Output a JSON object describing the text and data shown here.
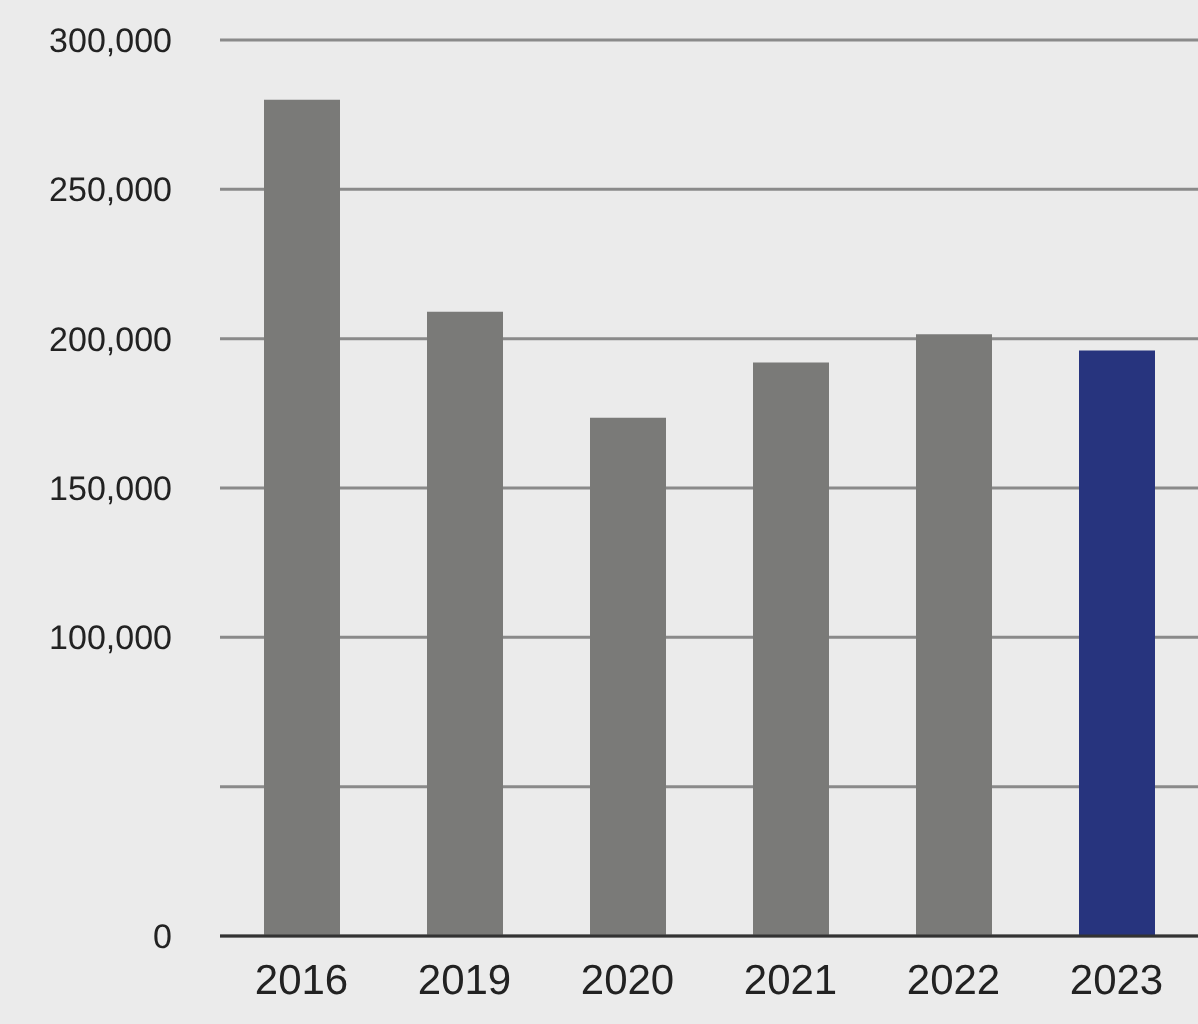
{
  "chart_data": {
    "type": "bar",
    "categories": [
      "2016",
      "2019",
      "2020",
      "2021",
      "2022",
      "2023"
    ],
    "values": [
      280000,
      209000,
      173500,
      192000,
      201500,
      196000
    ],
    "colors": [
      "#7a7a78",
      "#7a7a78",
      "#7a7a78",
      "#7a7a78",
      "#7a7a78",
      "#27347e"
    ],
    "ylim": [
      0,
      300000
    ],
    "yticks": [
      0,
      {
        "value": 50000,
        "label": null
      },
      {
        "value": 100000,
        "label": "100,000"
      },
      {
        "value": 150000,
        "label": "150,000"
      },
      {
        "value": 200000,
        "label": "200,000"
      },
      {
        "value": 250000,
        "label": "250,000"
      },
      {
        "value": 300000,
        "label": "300,000"
      }
    ],
    "grid": "y"
  }
}
